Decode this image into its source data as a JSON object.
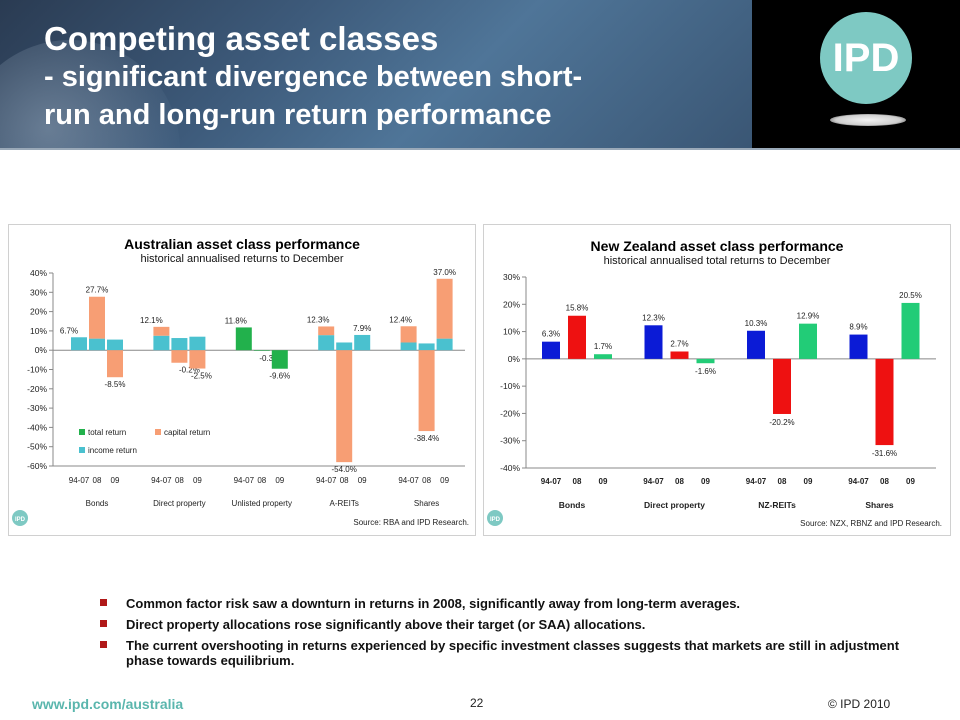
{
  "header": {
    "title_line1": "Competing asset classes",
    "title_line2": "- significant divergence between short-",
    "title_line3": "run and long-run return performance",
    "logo_text": "IPD",
    "logo_color": "#7ec9c3"
  },
  "chart_data": [
    {
      "type": "bar",
      "title": "Australian asset class performance",
      "subtitle": "historical annualised returns to December",
      "source": "Source: RBA and IPD Research.",
      "groups": [
        "Bonds",
        "Direct property",
        "Unlisted property",
        "A-REITs",
        "Shares"
      ],
      "periods": [
        "94-07",
        "08",
        "09"
      ],
      "ylim": [
        -60,
        40
      ],
      "yticks": [
        "40%",
        "30%",
        "20%",
        "10%",
        "0%",
        "-10%",
        "-20%",
        "-30%",
        "-40%",
        "-50%",
        "-60%"
      ],
      "stacked": true,
      "legend": [
        {
          "name": "total return",
          "color": "#22b14c"
        },
        {
          "name": "capital return",
          "color": "#f79e74"
        },
        {
          "name": "income return",
          "color": "#4ac1cf"
        }
      ],
      "series": [
        {
          "name": "income return",
          "color": "#4ac1cf",
          "values": [
            [
              6.7,
              6.0,
              5.5
            ],
            [
              7.5,
              6.3,
              7.0
            ],
            [
              null,
              null,
              null
            ],
            [
              7.8,
              4.0,
              7.9
            ],
            [
              4.0,
              3.5,
              6.0
            ]
          ]
        },
        {
          "name": "capital return",
          "color": "#f79e74",
          "values": [
            [
              0,
              21.7,
              -14.0
            ],
            [
              4.6,
              -6.5,
              -9.5
            ],
            [
              null,
              null,
              null
            ],
            [
              4.5,
              -58.0,
              0
            ],
            [
              8.4,
              -41.9,
              31.0
            ]
          ]
        },
        {
          "name": "total return",
          "color": "#22b14c",
          "values": [
            [
              null,
              null,
              null
            ],
            [
              null,
              null,
              null
            ],
            [
              11.8,
              -0.3,
              -9.6
            ],
            [
              null,
              null,
              null
            ],
            [
              null,
              null,
              null
            ]
          ]
        }
      ],
      "labels": [
        [
          "6.7%",
          "27.7%",
          "-8.5%"
        ],
        [
          "12.1%",
          "-0.2%",
          "-2.5%"
        ],
        [
          "11.8%",
          "-0.3%",
          "-9.6%"
        ],
        [
          "12.3%",
          "-54.0%",
          "7.9%"
        ],
        [
          "12.4%",
          "-38.4%",
          "37.0%"
        ]
      ]
    },
    {
      "type": "bar",
      "title": "New Zealand asset class performance",
      "subtitle": "historical annualised total returns to December",
      "source": "Source: NZX, RBNZ and IPD Research.",
      "groups": [
        "Bonds",
        "Direct property",
        "NZ-REITs",
        "Shares"
      ],
      "periods": [
        "94-07",
        "08",
        "09"
      ],
      "ylim": [
        -40,
        30
      ],
      "yticks": [
        "30%",
        "20%",
        "10%",
        "0%",
        "-10%",
        "-20%",
        "-30%",
        "-40%"
      ],
      "period_colors": [
        "#0b1bd6",
        "#ee1111",
        "#22cc77"
      ],
      "values": [
        [
          6.3,
          15.8,
          1.7
        ],
        [
          12.3,
          2.7,
          -1.6
        ],
        [
          10.3,
          -20.2,
          12.9
        ],
        [
          8.9,
          -31.6,
          20.5
        ]
      ],
      "labels": [
        [
          "6.3%",
          "15.8%",
          "1.7%"
        ],
        [
          "12.3%",
          "2.7%",
          "-1.6%"
        ],
        [
          "10.3%",
          "-20.2%",
          "12.9%"
        ],
        [
          "8.9%",
          "-31.6%",
          "20.5%"
        ]
      ]
    }
  ],
  "bullets": [
    "Common factor risk saw a downturn in returns in 2008, significantly away from long-term averages.",
    "Direct property allocations rose significantly above their target (or SAA) allocations.",
    "The current overshooting in returns experienced by specific investment classes suggests that markets are still in adjustment phase towards equilibrium."
  ],
  "footer": {
    "url": "www.ipd.com/australia",
    "page": "22",
    "copyright": "© IPD 2010"
  },
  "panel_logo_text": "IPD"
}
